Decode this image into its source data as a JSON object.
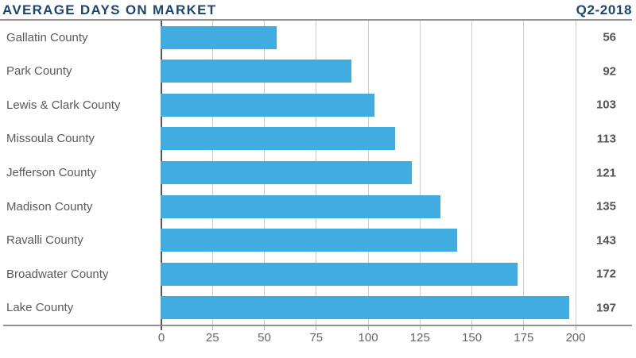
{
  "header": {
    "title": "AVERAGE DAYS ON MARKET",
    "period": "Q2-2018"
  },
  "chart_data": {
    "type": "bar",
    "orientation": "horizontal",
    "title": "AVERAGE DAYS ON MARKET",
    "subtitle": "Q2-2018",
    "categories": [
      "Gallatin County",
      "Park County",
      "Lewis & Clark County",
      "Missoula County",
      "Jefferson County",
      "Madison County",
      "Ravalli County",
      "Broadwater County",
      "Lake County"
    ],
    "values": [
      56,
      92,
      103,
      113,
      121,
      135,
      143,
      172,
      197
    ],
    "xlabel": "",
    "ylabel": "",
    "xticks": [
      0,
      25,
      50,
      75,
      100,
      125,
      150,
      175,
      200
    ],
    "xlim": [
      0,
      226.4
    ],
    "grid": "vertical",
    "legend": "none",
    "value_labels": "right-aligned outside bars",
    "colors": {
      "bar": "#41ACE1",
      "title": "#1B4573",
      "category_label": "#58595B",
      "value_label": "#515356",
      "tick_label": "#636467",
      "gridline": "#CBCCCD",
      "zero_line": "#55565A",
      "axis_line": "#8F9193"
    }
  }
}
